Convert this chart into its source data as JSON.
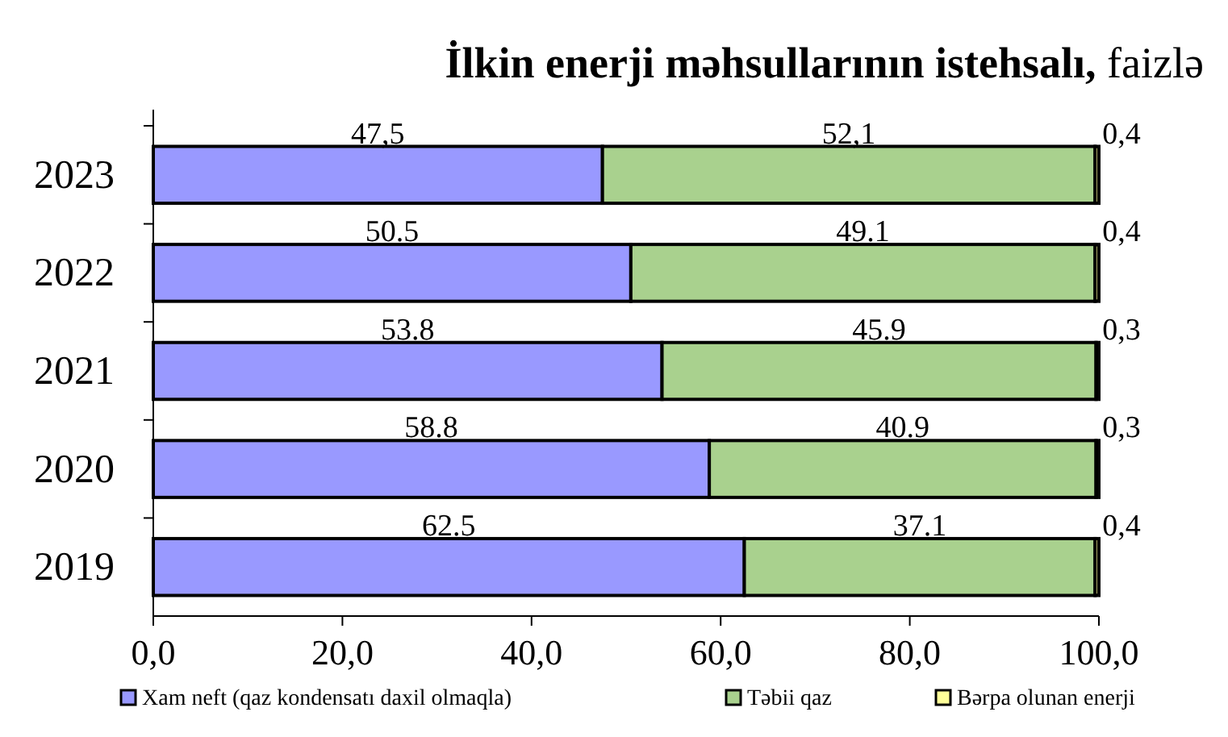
{
  "chart_data": {
    "type": "bar",
    "orientation": "horizontal",
    "stacked": true,
    "title": "İlkin enerji məhsullarının istehsalı, faizlə",
    "categories": [
      "2023",
      "2022",
      "2021",
      "2020",
      "2019"
    ],
    "series": [
      {
        "name": "Xam neft (qaz kondensatı daxil olmaqla)",
        "color": "#9999ff",
        "values": [
          47.5,
          50.5,
          53.8,
          58.8,
          62.5
        ],
        "value_labels": [
          "47,5",
          "50.5",
          "53.8",
          "58.8",
          "62.5"
        ]
      },
      {
        "name": "Təbii qaz",
        "color": "#a9d18e",
        "values": [
          52.1,
          49.1,
          45.9,
          40.9,
          37.1
        ],
        "value_labels": [
          "52,1",
          "49.1",
          "45.9",
          "40.9",
          "37.1"
        ]
      },
      {
        "name": "Bərpa olunan enerji",
        "color": "#ffff99",
        "values": [
          0.4,
          0.4,
          0.3,
          0.3,
          0.4
        ],
        "value_labels": [
          "0,4",
          "0,4",
          "0,3",
          "0,3",
          "0,4"
        ]
      }
    ],
    "xlim": [
      0,
      100
    ],
    "xticks": [
      {
        "value": 0,
        "label": "0,0"
      },
      {
        "value": 20,
        "label": "20,0"
      },
      {
        "value": 40,
        "label": "40,0"
      },
      {
        "value": 60,
        "label": "60,0"
      },
      {
        "value": 80,
        "label": "80,0"
      },
      {
        "value": 100,
        "label": "100,0"
      }
    ],
    "legend": "bottom"
  }
}
